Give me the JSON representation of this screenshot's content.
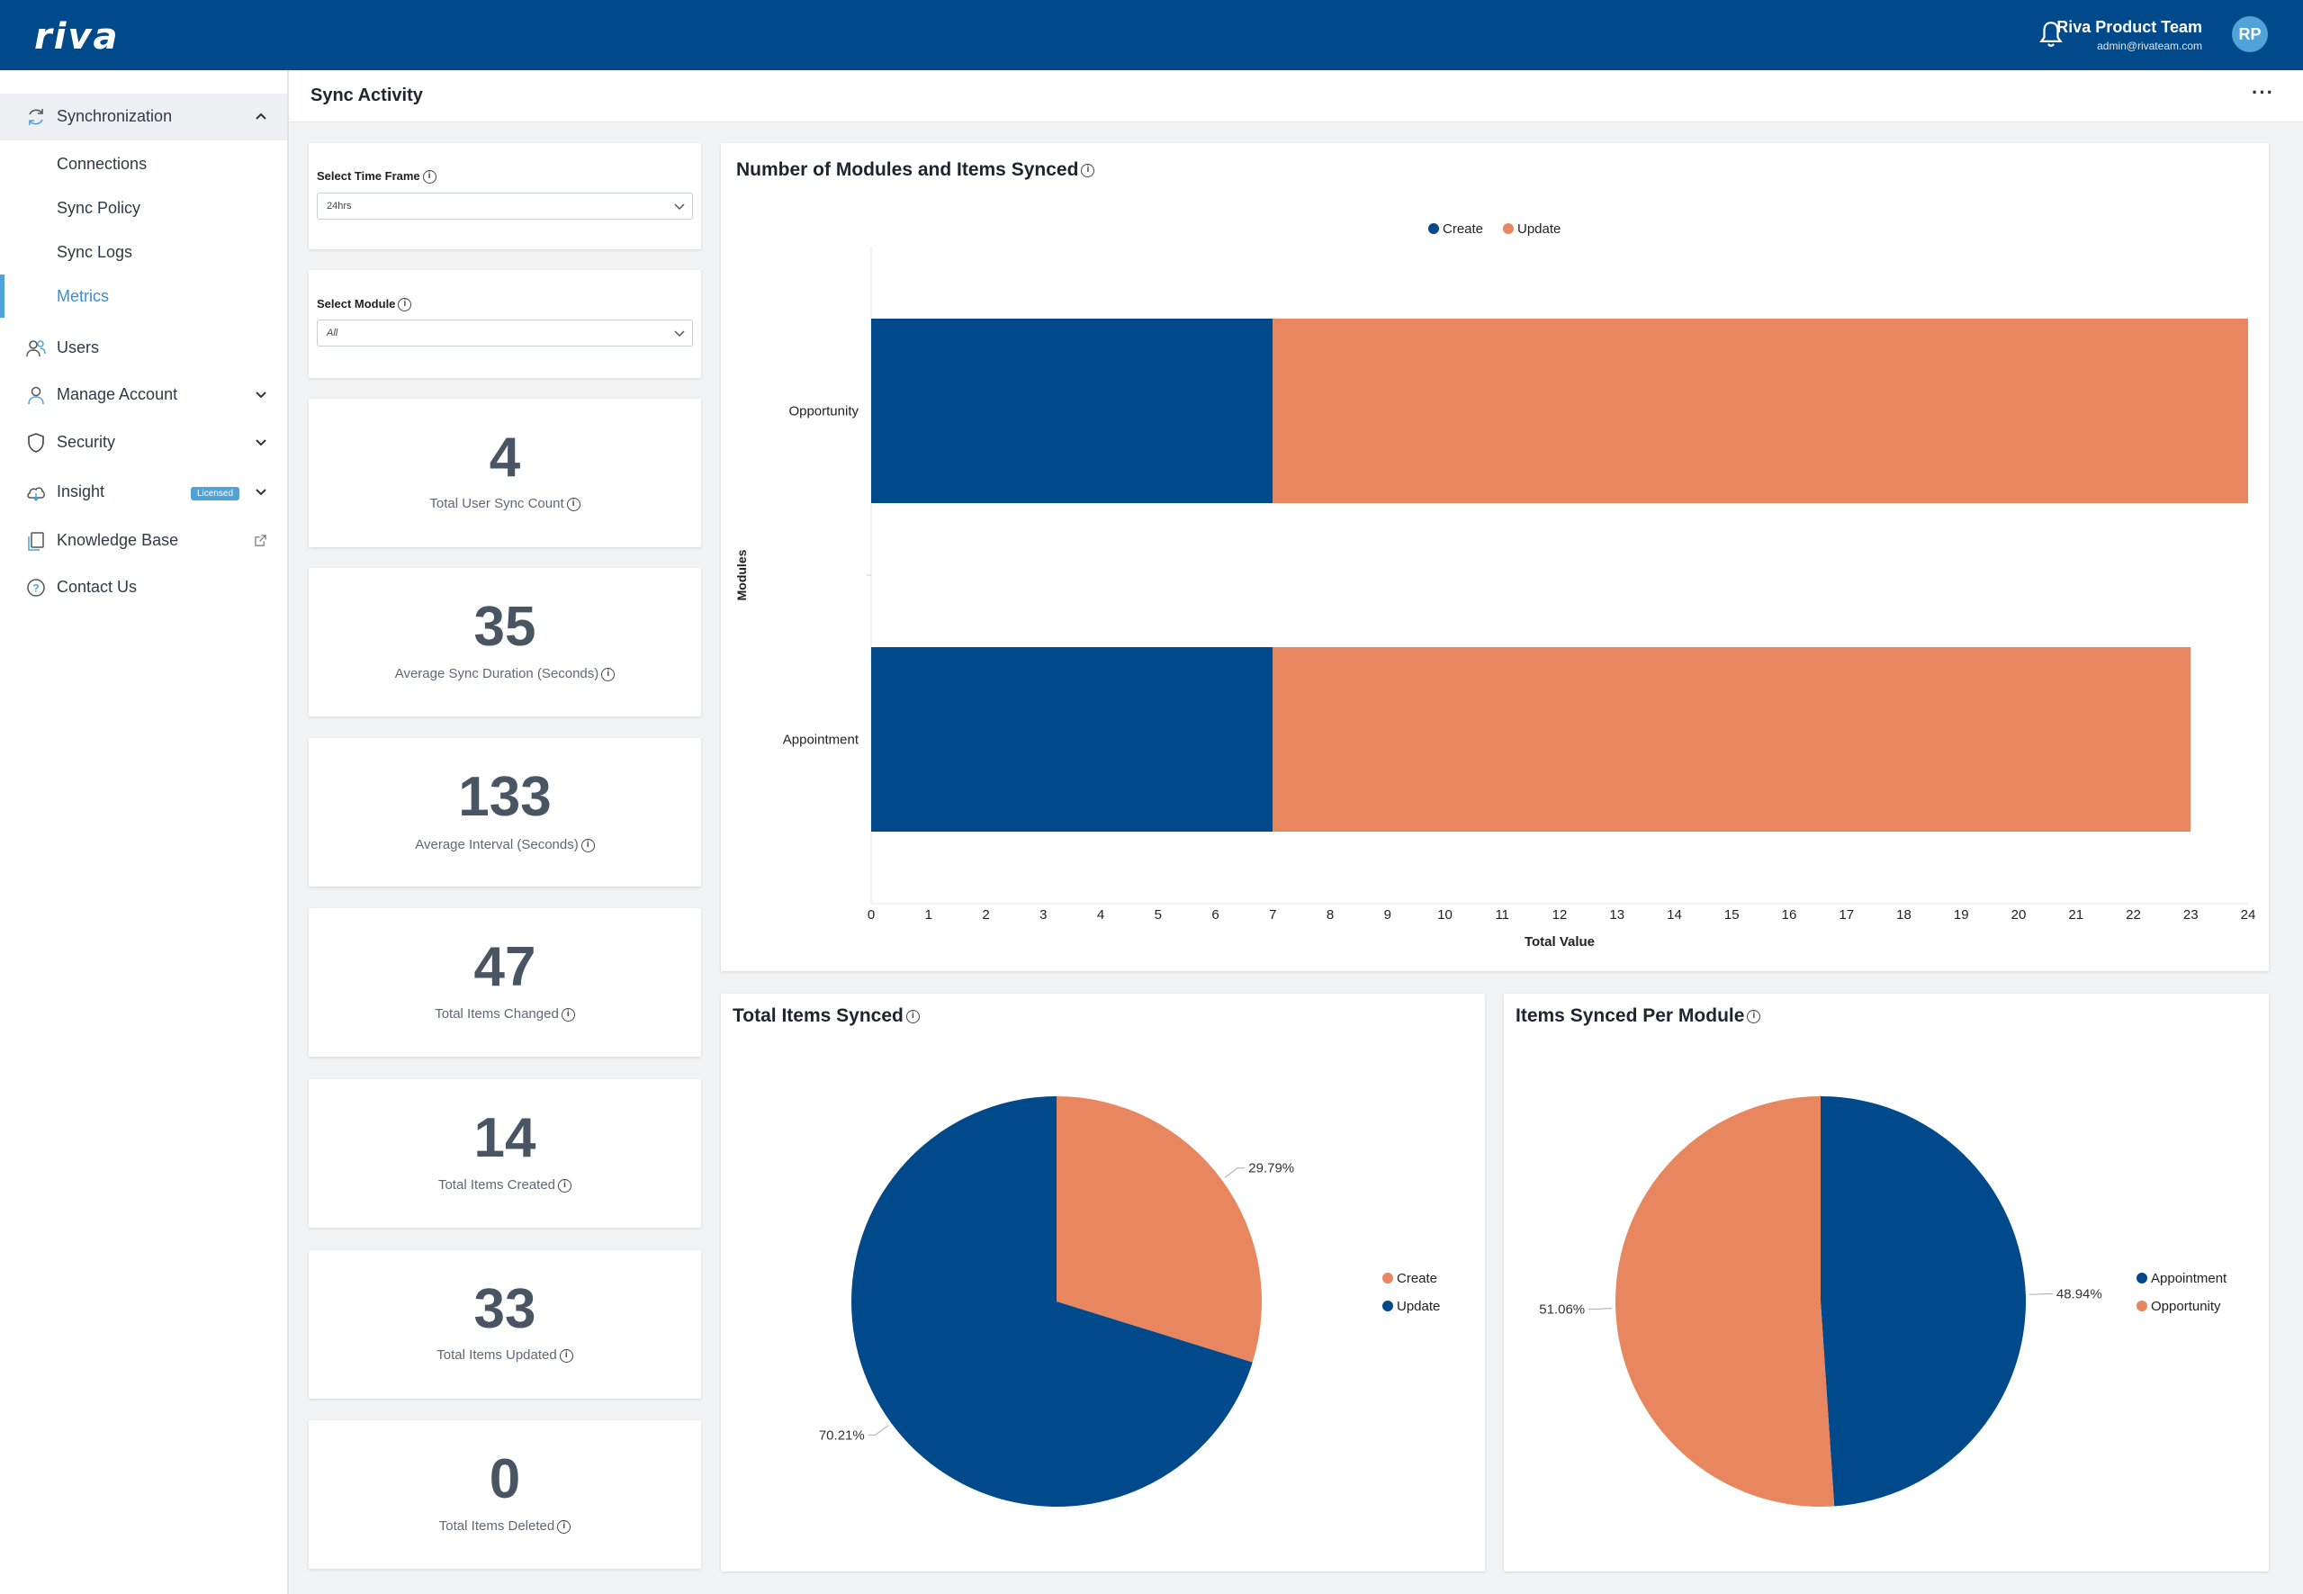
{
  "header": {
    "logo": "riva",
    "user_name": "Riva Product Team",
    "user_email": "admin@rivateam.com",
    "avatar_initials": "RP"
  },
  "sidebar": {
    "synchronization": "Synchronization",
    "sub_items": [
      "Connections",
      "Sync Policy",
      "Sync Logs",
      "Metrics"
    ],
    "users": "Users",
    "manage_account": "Manage Account",
    "security": "Security",
    "insight": "Insight",
    "insight_badge": "Licensed",
    "knowledge_base": "Knowledge Base",
    "contact_us": "Contact Us"
  },
  "page": {
    "title": "Sync Activity",
    "more": "···"
  },
  "filters": {
    "time_frame_label": "Select Time Frame",
    "time_frame_value": "24hrs",
    "module_label": "Select Module",
    "module_value": "All"
  },
  "stats": [
    {
      "value": "4",
      "label": "Total User Sync Count"
    },
    {
      "value": "35",
      "label": "Average Sync Duration (Seconds)"
    },
    {
      "value": "133",
      "label": "Average Interval (Seconds)"
    },
    {
      "value": "47",
      "label": "Total Items Changed"
    },
    {
      "value": "14",
      "label": "Total Items Created"
    },
    {
      "value": "33",
      "label": "Total Items Updated"
    },
    {
      "value": "0",
      "label": "Total Items Deleted"
    }
  ],
  "colors": {
    "create": "#00498a",
    "update": "#e8875f",
    "accent": "#4fa3d9"
  },
  "chart_data": [
    {
      "type": "bar",
      "orientation": "horizontal",
      "stacked": true,
      "title": "Number of Modules and Items Synced",
      "xlabel": "Total Value",
      "ylabel": "Modules",
      "categories": [
        "Opportunity",
        "Appointment"
      ],
      "series": [
        {
          "name": "Create",
          "values": [
            7,
            7
          ]
        },
        {
          "name": "Update",
          "values": [
            17,
            16
          ]
        }
      ],
      "xlim": [
        0,
        24
      ],
      "xticks": [
        0,
        1,
        2,
        3,
        4,
        5,
        6,
        7,
        8,
        9,
        10,
        11,
        12,
        13,
        14,
        15,
        16,
        17,
        18,
        19,
        20,
        21,
        22,
        23,
        24
      ],
      "legend": "top-center"
    },
    {
      "type": "pie",
      "title": "Total Items Synced",
      "labels": [
        "Create",
        "Update"
      ],
      "values": [
        29.79,
        70.21
      ],
      "value_labels": [
        "29.79%",
        "70.21%"
      ],
      "legend": "right"
    },
    {
      "type": "pie",
      "title": "Items Synced Per Module",
      "labels": [
        "Appointment",
        "Opportunity"
      ],
      "values": [
        48.94,
        51.06
      ],
      "value_labels": [
        "48.94%",
        "51.06%"
      ],
      "legend": "right"
    }
  ]
}
